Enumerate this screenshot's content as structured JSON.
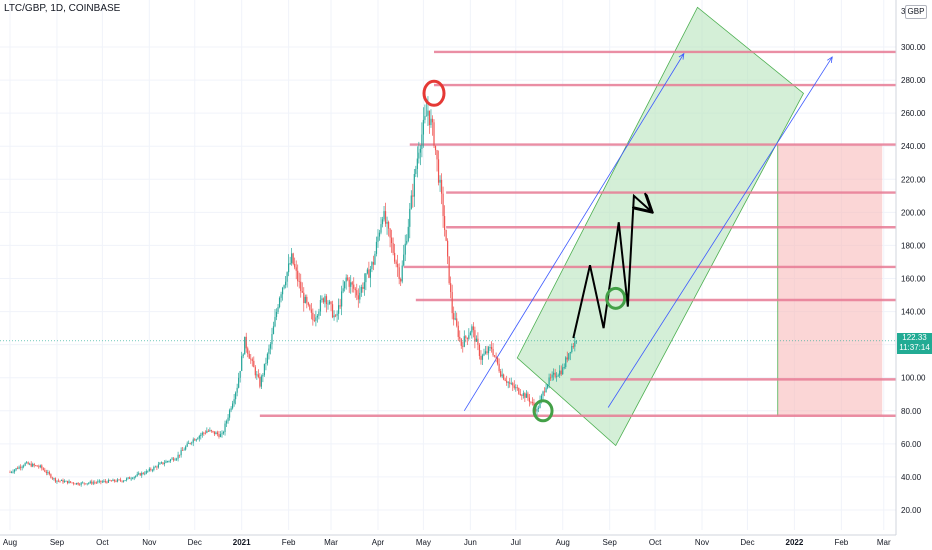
{
  "header": {
    "title": "LTC/GBP, 1D, COINBASE"
  },
  "price_axis": {
    "currency": "GBP",
    "top_partial": "32"
  },
  "last_price": {
    "value": "122.33",
    "countdown": "11:37:14",
    "color": "#22ab94"
  },
  "colors": {
    "up": "#26a69a",
    "down": "#ef5350",
    "level": "#e67a94",
    "channel_fill": "#b7e4bd",
    "channel_stroke": "#4caf50",
    "stop_zone": "#f8b4b4",
    "trendline": "#3d5afe",
    "red_circle": "#e53935",
    "green_circle": "#43a047",
    "projection": "#000000"
  },
  "chart_data": {
    "type": "candlestick",
    "title": "LTC/GBP, 1D, COINBASE",
    "ylim": [
      10,
      320
    ],
    "y_ticks": [
      20,
      40,
      60,
      80,
      100,
      120,
      140,
      160,
      180,
      200,
      220,
      240,
      260,
      280,
      300
    ],
    "x_ticks": [
      {
        "label": "Aug",
        "day": 0
      },
      {
        "label": "Sep",
        "day": 31
      },
      {
        "label": "Oct",
        "day": 61
      },
      {
        "label": "Nov",
        "day": 92
      },
      {
        "label": "Dec",
        "day": 122
      },
      {
        "label": "2021",
        "day": 153,
        "bold": true
      },
      {
        "label": "Feb",
        "day": 184
      },
      {
        "label": "Mar",
        "day": 212
      },
      {
        "label": "Apr",
        "day": 243
      },
      {
        "label": "May",
        "day": 273
      },
      {
        "label": "Jun",
        "day": 304
      },
      {
        "label": "Jul",
        "day": 334
      },
      {
        "label": "Aug",
        "day": 365
      },
      {
        "label": "Sep",
        "day": 396
      },
      {
        "label": "Oct",
        "day": 426
      },
      {
        "label": "Nov",
        "day": 457
      },
      {
        "label": "Dec",
        "day": 487
      },
      {
        "label": "2022",
        "day": 518,
        "bold": true
      },
      {
        "label": "Feb",
        "day": 549
      },
      {
        "label": "Mar",
        "day": 577
      }
    ],
    "price_keypoints": [
      [
        0,
        43
      ],
      [
        10,
        48
      ],
      [
        20,
        46
      ],
      [
        30,
        38
      ],
      [
        45,
        36
      ],
      [
        60,
        37
      ],
      [
        75,
        38
      ],
      [
        90,
        43
      ],
      [
        100,
        48
      ],
      [
        110,
        52
      ],
      [
        120,
        62
      ],
      [
        130,
        68
      ],
      [
        140,
        65
      ],
      [
        150,
        95
      ],
      [
        155,
        122
      ],
      [
        160,
        108
      ],
      [
        165,
        96
      ],
      [
        172,
        120
      ],
      [
        178,
        150
      ],
      [
        186,
        172
      ],
      [
        193,
        150
      ],
      [
        200,
        135
      ],
      [
        208,
        150
      ],
      [
        215,
        135
      ],
      [
        222,
        160
      ],
      [
        230,
        150
      ],
      [
        240,
        170
      ],
      [
        246,
        200
      ],
      [
        252,
        180
      ],
      [
        258,
        160
      ],
      [
        264,
        200
      ],
      [
        270,
        240
      ],
      [
        276,
        262
      ],
      [
        280,
        245
      ],
      [
        286,
        200
      ],
      [
        292,
        140
      ],
      [
        298,
        120
      ],
      [
        305,
        130
      ],
      [
        311,
        112
      ],
      [
        318,
        118
      ],
      [
        324,
        103
      ],
      [
        330,
        96
      ],
      [
        336,
        92
      ],
      [
        342,
        88
      ],
      [
        348,
        80
      ],
      [
        354,
        96
      ],
      [
        360,
        102
      ],
      [
        365,
        105
      ],
      [
        370,
        118
      ],
      [
        374,
        122.33
      ]
    ],
    "horizontal_levels": [
      {
        "price": 297,
        "start_day": 280
      },
      {
        "price": 277,
        "start_day": 280
      },
      {
        "price": 241,
        "start_day": 264
      },
      {
        "price": 212,
        "start_day": 288
      },
      {
        "price": 191,
        "start_day": 288
      },
      {
        "price": 167,
        "start_day": 260
      },
      {
        "price": 147,
        "start_day": 268
      },
      {
        "price": 99,
        "start_day": 370
      },
      {
        "price": 77,
        "start_day": 165
      }
    ],
    "ascending_channel": {
      "corners": [
        [
          335,
          112
        ],
        [
          454,
          324
        ],
        [
          524,
          272
        ],
        [
          400,
          59
        ]
      ]
    },
    "trendlines": [
      {
        "from": [
          300,
          80
        ],
        "to": [
          445,
          296
        ]
      },
      {
        "from": [
          395,
          82
        ],
        "to": [
          543,
          294
        ]
      }
    ],
    "stop_zone": {
      "start_day": 507,
      "end_day": 576,
      "price_from": 77,
      "price_to": 241
    },
    "projection_path": [
      [
        372,
        124
      ],
      [
        383,
        168
      ],
      [
        392,
        130
      ],
      [
        402,
        194
      ],
      [
        408,
        143
      ],
      [
        412,
        210
      ],
      [
        423,
        201
      ]
    ],
    "markers": [
      {
        "type": "circle",
        "color": "red",
        "day": 280,
        "price": 272
      },
      {
        "type": "circle",
        "color": "green",
        "day": 352,
        "price": 80
      },
      {
        "type": "circle",
        "color": "green",
        "day": 400,
        "price": 148
      }
    ],
    "last_value": 122.33
  }
}
